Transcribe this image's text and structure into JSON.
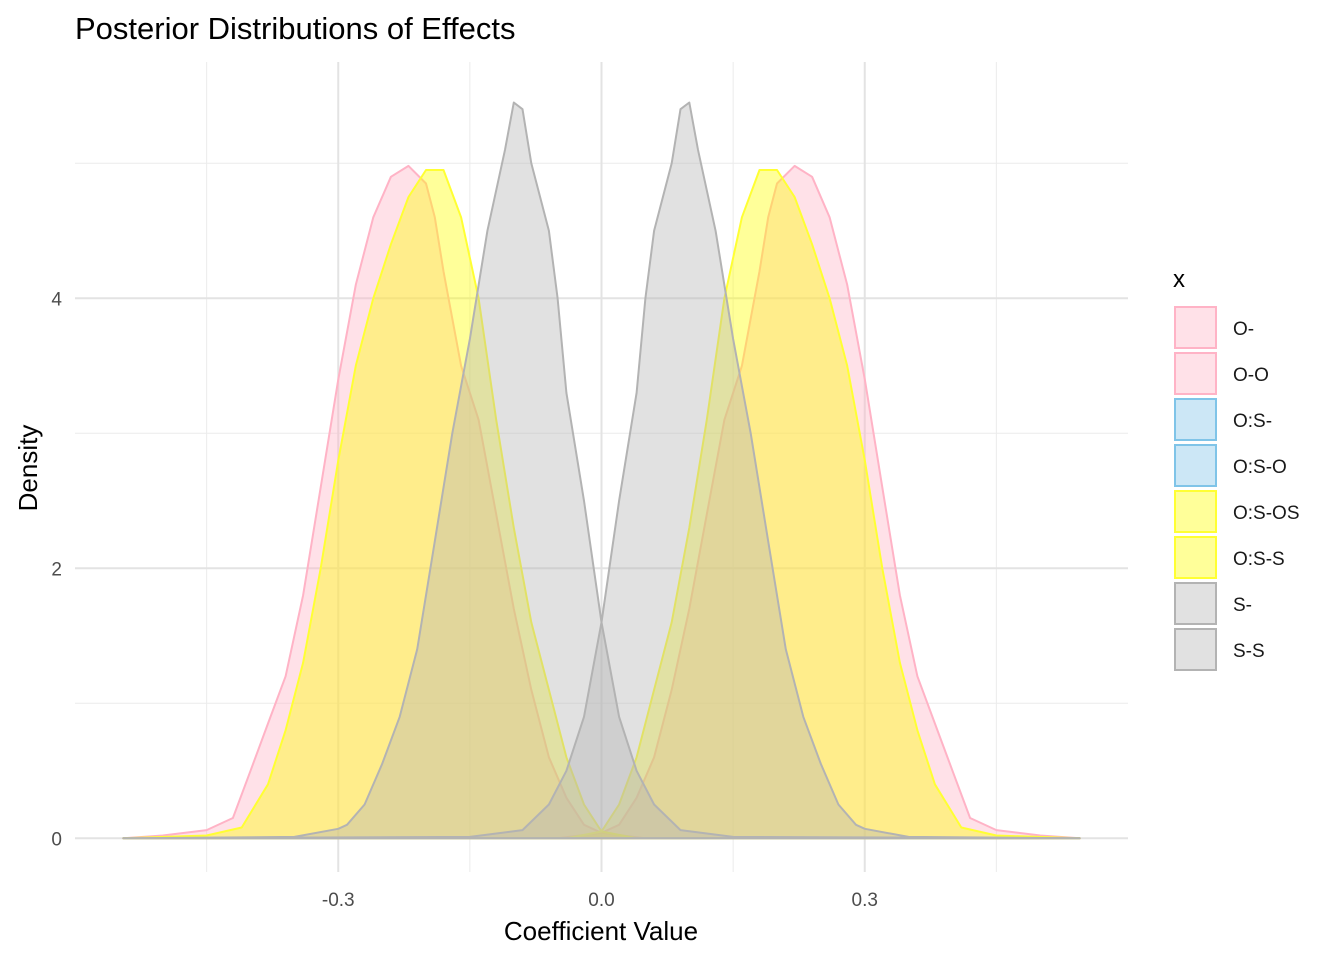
{
  "chart_data": {
    "type": "area",
    "title": "Posterior Distributions of Effects",
    "xlabel": "Coefficient Value",
    "ylabel": "Density",
    "xlim": [
      -0.6,
      0.6
    ],
    "ylim": [
      -0.25,
      5.75
    ],
    "x_major_ticks": [
      -0.3,
      0.0,
      0.3
    ],
    "x_tick_labels": [
      "-0.3",
      "0.0",
      "0.3"
    ],
    "x_minor_ticks": [
      -0.45,
      -0.15,
      0.15,
      0.45
    ],
    "y_major_ticks": [
      0,
      2,
      4
    ],
    "y_tick_labels": [
      "0",
      "2",
      "4"
    ],
    "y_minor_ticks": [
      1,
      3,
      5
    ],
    "grid": true,
    "legend_position": "right",
    "legend_title": "x",
    "series": [
      {
        "name": "O-",
        "stroke": "#ffb3c6",
        "fill": "#ffb3c6",
        "opacity": 0.4,
        "points": [
          [
            -0.545,
            0
          ],
          [
            -0.5,
            0.02
          ],
          [
            -0.45,
            0.06
          ],
          [
            -0.42,
            0.15
          ],
          [
            -0.4,
            0.5
          ],
          [
            -0.38,
            0.85
          ],
          [
            -0.36,
            1.2
          ],
          [
            -0.34,
            1.8
          ],
          [
            -0.32,
            2.6
          ],
          [
            -0.3,
            3.4
          ],
          [
            -0.28,
            4.1
          ],
          [
            -0.26,
            4.6
          ],
          [
            -0.24,
            4.9
          ],
          [
            -0.22,
            4.98
          ],
          [
            -0.2,
            4.85
          ],
          [
            -0.19,
            4.6
          ],
          [
            -0.18,
            4.2
          ],
          [
            -0.16,
            3.5
          ],
          [
            -0.14,
            3.1
          ],
          [
            -0.12,
            2.4
          ],
          [
            -0.1,
            1.7
          ],
          [
            -0.08,
            1.1
          ],
          [
            -0.06,
            0.6
          ],
          [
            -0.04,
            0.3
          ],
          [
            -0.02,
            0.1
          ],
          [
            0,
            0.04
          ],
          [
            0.05,
            0
          ],
          [
            0.545,
            0
          ]
        ]
      },
      {
        "name": "O-O",
        "stroke": "#ffb3c6",
        "fill": "#ffb3c6",
        "opacity": 0.4,
        "points": [
          [
            -0.545,
            0
          ],
          [
            -0.05,
            0
          ],
          [
            0,
            0.04
          ],
          [
            0.02,
            0.1
          ],
          [
            0.04,
            0.3
          ],
          [
            0.06,
            0.6
          ],
          [
            0.08,
            1.1
          ],
          [
            0.1,
            1.7
          ],
          [
            0.12,
            2.4
          ],
          [
            0.14,
            3.1
          ],
          [
            0.16,
            3.5
          ],
          [
            0.18,
            4.2
          ],
          [
            0.19,
            4.6
          ],
          [
            0.2,
            4.85
          ],
          [
            0.22,
            4.98
          ],
          [
            0.24,
            4.9
          ],
          [
            0.26,
            4.6
          ],
          [
            0.28,
            4.1
          ],
          [
            0.3,
            3.4
          ],
          [
            0.32,
            2.6
          ],
          [
            0.34,
            1.8
          ],
          [
            0.36,
            1.2
          ],
          [
            0.38,
            0.85
          ],
          [
            0.4,
            0.5
          ],
          [
            0.42,
            0.15
          ],
          [
            0.45,
            0.06
          ],
          [
            0.5,
            0.02
          ],
          [
            0.545,
            0
          ]
        ]
      },
      {
        "name": "O:S-",
        "stroke": "#7fc4e8",
        "fill": "#7fc4e8",
        "opacity": 0.4,
        "points": []
      },
      {
        "name": "O:S-O",
        "stroke": "#7fc4e8",
        "fill": "#7fc4e8",
        "opacity": 0.4,
        "points": []
      },
      {
        "name": "O:S-OS",
        "stroke": "#ffff33",
        "fill": "#ffff00",
        "opacity": 0.4,
        "points": [
          [
            -0.545,
            0
          ],
          [
            -0.45,
            0.02
          ],
          [
            -0.41,
            0.08
          ],
          [
            -0.38,
            0.4
          ],
          [
            -0.36,
            0.8
          ],
          [
            -0.34,
            1.3
          ],
          [
            -0.32,
            2.0
          ],
          [
            -0.3,
            2.8
          ],
          [
            -0.28,
            3.5
          ],
          [
            -0.26,
            4.0
          ],
          [
            -0.24,
            4.4
          ],
          [
            -0.22,
            4.75
          ],
          [
            -0.2,
            4.95
          ],
          [
            -0.18,
            4.95
          ],
          [
            -0.16,
            4.6
          ],
          [
            -0.14,
            4.0
          ],
          [
            -0.12,
            3.1
          ],
          [
            -0.1,
            2.3
          ],
          [
            -0.08,
            1.6
          ],
          [
            -0.06,
            1.1
          ],
          [
            -0.04,
            0.6
          ],
          [
            -0.02,
            0.25
          ],
          [
            0,
            0.05
          ],
          [
            0.04,
            0
          ],
          [
            0.545,
            0
          ]
        ]
      },
      {
        "name": "O:S-S",
        "stroke": "#ffff33",
        "fill": "#ffff00",
        "opacity": 0.4,
        "points": [
          [
            -0.545,
            0
          ],
          [
            -0.04,
            0
          ],
          [
            0,
            0.05
          ],
          [
            0.02,
            0.25
          ],
          [
            0.04,
            0.6
          ],
          [
            0.06,
            1.1
          ],
          [
            0.08,
            1.6
          ],
          [
            0.1,
            2.3
          ],
          [
            0.12,
            3.1
          ],
          [
            0.14,
            4.0
          ],
          [
            0.16,
            4.6
          ],
          [
            0.18,
            4.95
          ],
          [
            0.2,
            4.95
          ],
          [
            0.22,
            4.75
          ],
          [
            0.24,
            4.4
          ],
          [
            0.26,
            4.0
          ],
          [
            0.28,
            3.5
          ],
          [
            0.3,
            2.8
          ],
          [
            0.32,
            2.0
          ],
          [
            0.34,
            1.3
          ],
          [
            0.36,
            0.8
          ],
          [
            0.38,
            0.4
          ],
          [
            0.41,
            0.08
          ],
          [
            0.45,
            0.02
          ],
          [
            0.545,
            0
          ]
        ]
      },
      {
        "name": "S-",
        "stroke": "#b3b3b3",
        "fill": "#b3b3b3",
        "opacity": 0.4,
        "points": [
          [
            -0.545,
            0
          ],
          [
            -0.35,
            0.01
          ],
          [
            -0.3,
            0.07
          ],
          [
            -0.29,
            0.1
          ],
          [
            -0.27,
            0.25
          ],
          [
            -0.25,
            0.55
          ],
          [
            -0.23,
            0.9
          ],
          [
            -0.21,
            1.4
          ],
          [
            -0.19,
            2.2
          ],
          [
            -0.17,
            3.0
          ],
          [
            -0.15,
            3.7
          ],
          [
            -0.13,
            4.5
          ],
          [
            -0.11,
            5.1
          ],
          [
            -0.1,
            5.45
          ],
          [
            -0.09,
            5.4
          ],
          [
            -0.08,
            5.0
          ],
          [
            -0.06,
            4.5
          ],
          [
            -0.05,
            4.0
          ],
          [
            -0.04,
            3.3
          ],
          [
            -0.02,
            2.5
          ],
          [
            0,
            1.6
          ],
          [
            0.02,
            0.9
          ],
          [
            0.04,
            0.5
          ],
          [
            0.06,
            0.25
          ],
          [
            0.09,
            0.06
          ],
          [
            0.15,
            0.01
          ],
          [
            0.545,
            0
          ]
        ]
      },
      {
        "name": "S-S",
        "stroke": "#b3b3b3",
        "fill": "#b3b3b3",
        "opacity": 0.4,
        "points": [
          [
            -0.545,
            0
          ],
          [
            -0.15,
            0.01
          ],
          [
            -0.09,
            0.06
          ],
          [
            -0.06,
            0.25
          ],
          [
            -0.04,
            0.5
          ],
          [
            -0.02,
            0.9
          ],
          [
            0,
            1.6
          ],
          [
            0.02,
            2.5
          ],
          [
            0.04,
            3.3
          ],
          [
            0.05,
            4.0
          ],
          [
            0.06,
            4.5
          ],
          [
            0.08,
            5.0
          ],
          [
            0.09,
            5.4
          ],
          [
            0.1,
            5.45
          ],
          [
            0.11,
            5.1
          ],
          [
            0.13,
            4.5
          ],
          [
            0.15,
            3.7
          ],
          [
            0.17,
            3.0
          ],
          [
            0.19,
            2.2
          ],
          [
            0.21,
            1.4
          ],
          [
            0.23,
            0.9
          ],
          [
            0.25,
            0.55
          ],
          [
            0.27,
            0.25
          ],
          [
            0.29,
            0.1
          ],
          [
            0.3,
            0.07
          ],
          [
            0.35,
            0.01
          ],
          [
            0.545,
            0
          ]
        ]
      }
    ]
  }
}
